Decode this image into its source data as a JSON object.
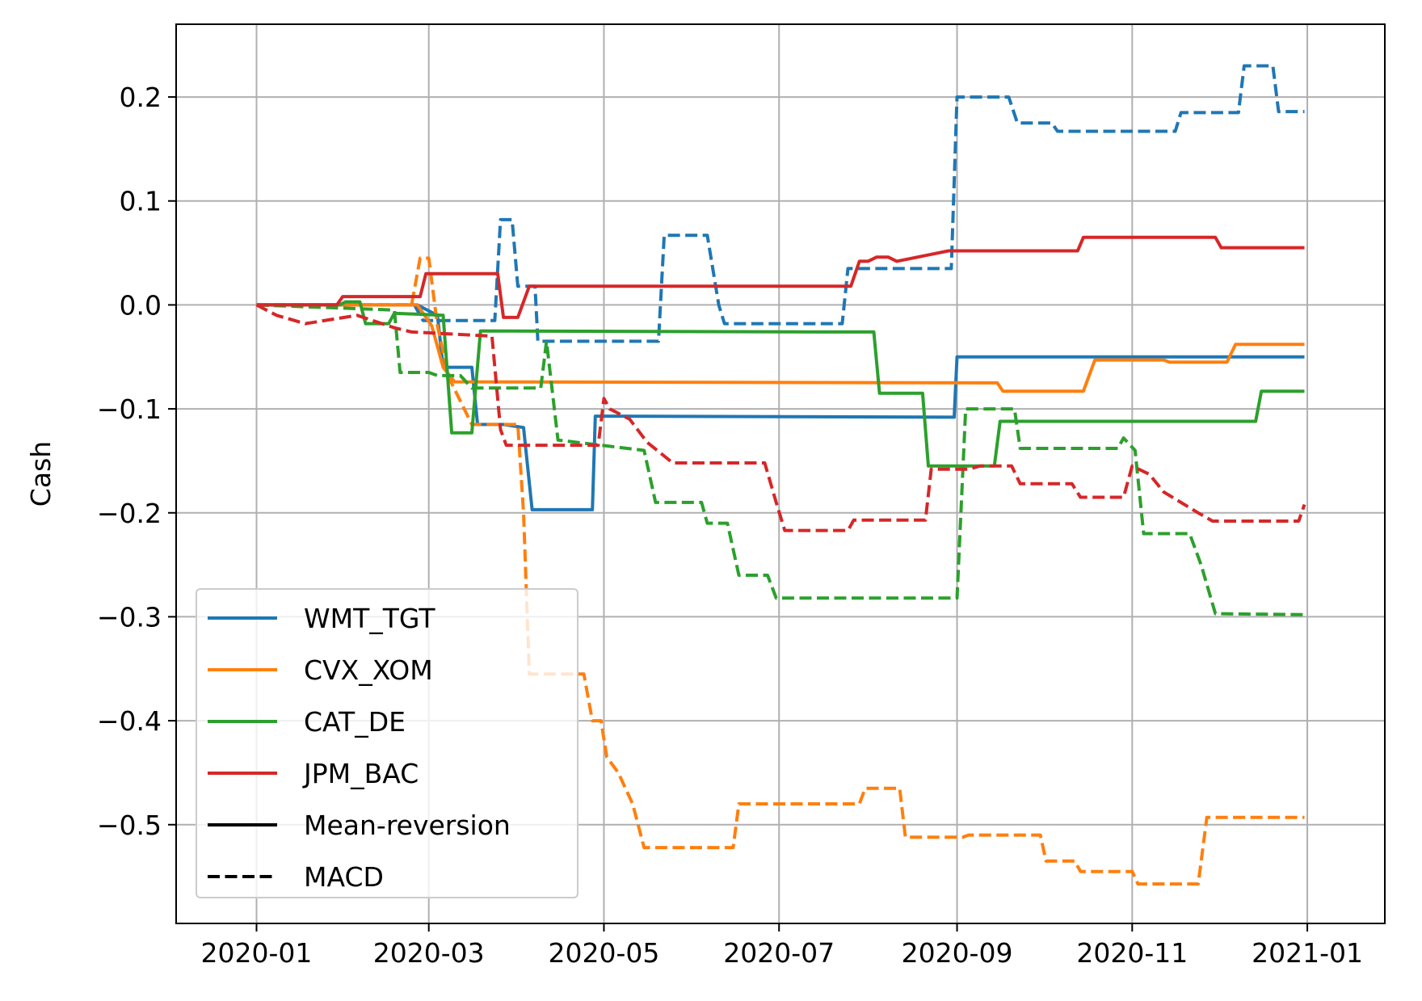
{
  "chart_data": {
    "type": "line",
    "title": "",
    "xlabel": "",
    "ylabel": "Cash",
    "x_ticks": [
      "2020-01",
      "2020-03",
      "2020-05",
      "2020-07",
      "2020-09",
      "2020-11",
      "2021-01"
    ],
    "y_ticks": [
      0.2,
      0.1,
      0.0,
      -0.1,
      -0.2,
      -0.3,
      -0.4,
      -0.5
    ],
    "y_tick_labels": [
      "0.2",
      "0.1",
      "0.0",
      "−0.1",
      "−0.2",
      "−0.3",
      "−0.4",
      "−0.5"
    ],
    "xlim": [
      "2019-12-04",
      "2021-01-28"
    ],
    "ylim": [
      -0.595,
      0.27
    ],
    "grid": true,
    "legend_position": "lower-left",
    "colors": {
      "WMT_TGT": "#1f77b4",
      "CVX_XOM": "#ff7f0e",
      "CAT_DE": "#2ca02c",
      "JPM_BAC": "#d62728",
      "style_key": "#000000"
    },
    "legend": [
      {
        "label": "WMT_TGT",
        "color": "#1f77b4",
        "style": "solid"
      },
      {
        "label": "CVX_XOM",
        "color": "#ff7f0e",
        "style": "solid"
      },
      {
        "label": "CAT_DE",
        "color": "#2ca02c",
        "style": "solid"
      },
      {
        "label": "JPM_BAC",
        "color": "#d62728",
        "style": "solid"
      },
      {
        "label": "Mean-reversion",
        "color": "#000000",
        "style": "solid"
      },
      {
        "label": "MACD",
        "color": "#000000",
        "style": "dashed"
      }
    ],
    "series": [
      {
        "name": "WMT_TGT",
        "strategy": "Mean-reversion",
        "color": "#1f77b4",
        "dashed": false,
        "points": [
          [
            "2020-01-01",
            0.0
          ],
          [
            "2020-02-26",
            0.0
          ],
          [
            "2020-03-04",
            -0.01
          ],
          [
            "2020-03-06",
            -0.06
          ],
          [
            "2020-03-16",
            -0.06
          ],
          [
            "2020-03-18",
            -0.115
          ],
          [
            "2020-03-27",
            -0.115
          ],
          [
            "2020-04-03",
            -0.118
          ],
          [
            "2020-04-06",
            -0.197
          ],
          [
            "2020-04-27",
            -0.197
          ],
          [
            "2020-04-28",
            -0.107
          ],
          [
            "2020-08-31",
            -0.108
          ],
          [
            "2020-09-01",
            -0.05
          ],
          [
            "2020-12-31",
            -0.05
          ]
        ]
      },
      {
        "name": "WMT_TGT",
        "strategy": "MACD",
        "color": "#1f77b4",
        "dashed": true,
        "points": [
          [
            "2020-01-01",
            0.0
          ],
          [
            "2020-02-25",
            0.0
          ],
          [
            "2020-02-28",
            -0.015
          ],
          [
            "2020-03-24",
            -0.015
          ],
          [
            "2020-03-26",
            0.082
          ],
          [
            "2020-03-30",
            0.082
          ],
          [
            "2020-04-01",
            0.018
          ],
          [
            "2020-04-07",
            0.018
          ],
          [
            "2020-04-08",
            -0.035
          ],
          [
            "2020-05-20",
            -0.035
          ],
          [
            "2020-05-22",
            0.067
          ],
          [
            "2020-06-06",
            0.067
          ],
          [
            "2020-06-10",
            0.0
          ],
          [
            "2020-06-12",
            -0.018
          ],
          [
            "2020-07-23",
            -0.018
          ],
          [
            "2020-07-25",
            0.035
          ],
          [
            "2020-08-30",
            0.035
          ],
          [
            "2020-09-01",
            0.2
          ],
          [
            "2020-09-19",
            0.2
          ],
          [
            "2020-09-22",
            0.175
          ],
          [
            "2020-10-04",
            0.175
          ],
          [
            "2020-10-06",
            0.167
          ],
          [
            "2020-11-16",
            0.167
          ],
          [
            "2020-11-18",
            0.185
          ],
          [
            "2020-12-08",
            0.185
          ],
          [
            "2020-12-10",
            0.23
          ],
          [
            "2020-12-20",
            0.23
          ],
          [
            "2020-12-22",
            0.186
          ],
          [
            "2020-12-31",
            0.186
          ]
        ]
      },
      {
        "name": "CVX_XOM",
        "strategy": "Mean-reversion",
        "color": "#ff7f0e",
        "dashed": false,
        "points": [
          [
            "2020-01-01",
            0.0
          ],
          [
            "2020-02-26",
            0.0
          ],
          [
            "2020-03-02",
            -0.02
          ],
          [
            "2020-03-06",
            -0.06
          ],
          [
            "2020-03-10",
            -0.074
          ],
          [
            "2020-09-15",
            -0.075
          ],
          [
            "2020-09-17",
            -0.083
          ],
          [
            "2020-10-15",
            -0.083
          ],
          [
            "2020-10-19",
            -0.053
          ],
          [
            "2020-11-12",
            -0.053
          ],
          [
            "2020-11-14",
            -0.055
          ],
          [
            "2020-12-04",
            -0.055
          ],
          [
            "2020-12-07",
            -0.038
          ],
          [
            "2020-12-31",
            -0.038
          ]
        ]
      },
      {
        "name": "CVX_XOM",
        "strategy": "MACD",
        "color": "#ff7f0e",
        "dashed": true,
        "points": [
          [
            "2020-01-01",
            0.0
          ],
          [
            "2020-02-24",
            0.0
          ],
          [
            "2020-02-27",
            0.045
          ],
          [
            "2020-03-01",
            0.045
          ],
          [
            "2020-03-04",
            -0.02
          ],
          [
            "2020-03-08",
            -0.07
          ],
          [
            "2020-03-16",
            -0.115
          ],
          [
            "2020-04-01",
            -0.115
          ],
          [
            "2020-04-03",
            -0.2
          ],
          [
            "2020-04-05",
            -0.355
          ],
          [
            "2020-04-24",
            -0.355
          ],
          [
            "2020-04-27",
            -0.4
          ],
          [
            "2020-04-30",
            -0.4
          ],
          [
            "2020-05-02",
            -0.435
          ],
          [
            "2020-05-06",
            -0.45
          ],
          [
            "2020-05-11",
            -0.48
          ],
          [
            "2020-05-15",
            -0.522
          ],
          [
            "2020-06-15",
            -0.522
          ],
          [
            "2020-06-17",
            -0.48
          ],
          [
            "2020-07-29",
            -0.48
          ],
          [
            "2020-07-31",
            -0.465
          ],
          [
            "2020-08-12",
            -0.465
          ],
          [
            "2020-08-14",
            -0.512
          ],
          [
            "2020-09-03",
            -0.512
          ],
          [
            "2020-09-05",
            -0.51
          ],
          [
            "2020-09-30",
            -0.51
          ],
          [
            "2020-10-02",
            -0.535
          ],
          [
            "2020-10-12",
            -0.535
          ],
          [
            "2020-10-14",
            -0.545
          ],
          [
            "2020-11-01",
            -0.545
          ],
          [
            "2020-11-03",
            -0.557
          ],
          [
            "2020-11-24",
            -0.557
          ],
          [
            "2020-11-27",
            -0.493
          ],
          [
            "2020-12-31",
            -0.493
          ]
        ]
      },
      {
        "name": "CAT_DE",
        "strategy": "Mean-reversion",
        "color": "#2ca02c",
        "dashed": false,
        "points": [
          [
            "2020-01-01",
            0.0
          ],
          [
            "2020-01-30",
            0.0
          ],
          [
            "2020-02-01",
            0.003
          ],
          [
            "2020-02-06",
            0.003
          ],
          [
            "2020-02-08",
            -0.018
          ],
          [
            "2020-02-16",
            -0.018
          ],
          [
            "2020-02-18",
            -0.008
          ],
          [
            "2020-03-06",
            -0.01
          ],
          [
            "2020-03-09",
            -0.123
          ],
          [
            "2020-03-16",
            -0.123
          ],
          [
            "2020-03-19",
            -0.025
          ],
          [
            "2020-07-24",
            -0.026
          ],
          [
            "2020-08-03",
            -0.026
          ],
          [
            "2020-08-05",
            -0.085
          ],
          [
            "2020-08-20",
            -0.085
          ],
          [
            "2020-08-22",
            -0.155
          ],
          [
            "2020-09-14",
            -0.155
          ],
          [
            "2020-09-16",
            -0.112
          ],
          [
            "2020-12-14",
            -0.112
          ],
          [
            "2020-12-16",
            -0.083
          ],
          [
            "2020-12-31",
            -0.083
          ]
        ]
      },
      {
        "name": "CAT_DE",
        "strategy": "MACD",
        "color": "#2ca02c",
        "dashed": true,
        "points": [
          [
            "2020-01-01",
            0.0
          ],
          [
            "2020-02-18",
            -0.005
          ],
          [
            "2020-02-20",
            -0.065
          ],
          [
            "2020-03-01",
            -0.065
          ],
          [
            "2020-03-04",
            -0.068
          ],
          [
            "2020-03-12",
            -0.068
          ],
          [
            "2020-03-16",
            -0.08
          ],
          [
            "2020-04-09",
            -0.08
          ],
          [
            "2020-04-11",
            -0.035
          ],
          [
            "2020-04-15",
            -0.13
          ],
          [
            "2020-05-15",
            -0.14
          ],
          [
            "2020-05-19",
            -0.19
          ],
          [
            "2020-06-04",
            -0.19
          ],
          [
            "2020-06-06",
            -0.21
          ],
          [
            "2020-06-13",
            -0.21
          ],
          [
            "2020-06-17",
            -0.26
          ],
          [
            "2020-06-27",
            -0.26
          ],
          [
            "2020-06-30",
            -0.282
          ],
          [
            "2020-09-01",
            -0.282
          ],
          [
            "2020-09-04",
            -0.1
          ],
          [
            "2020-09-21",
            -0.1
          ],
          [
            "2020-09-23",
            -0.138
          ],
          [
            "2020-10-27",
            -0.138
          ],
          [
            "2020-10-29",
            -0.128
          ],
          [
            "2020-11-02",
            -0.14
          ],
          [
            "2020-11-05",
            -0.22
          ],
          [
            "2020-11-21",
            -0.22
          ],
          [
            "2020-11-25",
            -0.25
          ],
          [
            "2020-11-30",
            -0.297
          ],
          [
            "2020-12-31",
            -0.298
          ]
        ]
      },
      {
        "name": "JPM_BAC",
        "strategy": "Mean-reversion",
        "color": "#d62728",
        "dashed": false,
        "points": [
          [
            "2020-01-01",
            0.0
          ],
          [
            "2020-01-29",
            0.0
          ],
          [
            "2020-01-31",
            0.008
          ],
          [
            "2020-02-27",
            0.008
          ],
          [
            "2020-02-29",
            0.03
          ],
          [
            "2020-03-25",
            0.03
          ],
          [
            "2020-03-27",
            -0.012
          ],
          [
            "2020-04-01",
            -0.012
          ],
          [
            "2020-04-05",
            0.018
          ],
          [
            "2020-07-26",
            0.018
          ],
          [
            "2020-07-29",
            0.042
          ],
          [
            "2020-08-01",
            0.042
          ],
          [
            "2020-08-04",
            0.046
          ],
          [
            "2020-08-08",
            0.046
          ],
          [
            "2020-08-11",
            0.042
          ],
          [
            "2020-08-29",
            0.052
          ],
          [
            "2020-10-13",
            0.052
          ],
          [
            "2020-10-15",
            0.065
          ],
          [
            "2020-11-30",
            0.065
          ],
          [
            "2020-12-02",
            0.055
          ],
          [
            "2020-12-31",
            0.055
          ]
        ]
      },
      {
        "name": "JPM_BAC",
        "strategy": "MACD",
        "color": "#d62728",
        "dashed": true,
        "points": [
          [
            "2020-01-01",
            0.0
          ],
          [
            "2020-01-08",
            -0.01
          ],
          [
            "2020-01-18",
            -0.018
          ],
          [
            "2020-02-05",
            -0.01
          ],
          [
            "2020-02-18",
            -0.022
          ],
          [
            "2020-02-24",
            -0.026
          ],
          [
            "2020-03-23",
            -0.03
          ],
          [
            "2020-03-26",
            -0.12
          ],
          [
            "2020-03-28",
            -0.135
          ],
          [
            "2020-04-29",
            -0.135
          ],
          [
            "2020-05-01",
            -0.09
          ],
          [
            "2020-05-03",
            -0.1
          ],
          [
            "2020-05-10",
            -0.11
          ],
          [
            "2020-05-16",
            -0.132
          ],
          [
            "2020-05-25",
            -0.152
          ],
          [
            "2020-06-26",
            -0.152
          ],
          [
            "2020-06-30",
            -0.19
          ],
          [
            "2020-07-03",
            -0.217
          ],
          [
            "2020-07-25",
            -0.217
          ],
          [
            "2020-07-27",
            -0.207
          ],
          [
            "2020-08-21",
            -0.207
          ],
          [
            "2020-08-23",
            -0.158
          ],
          [
            "2020-09-05",
            -0.158
          ],
          [
            "2020-09-09",
            -0.155
          ],
          [
            "2020-09-20",
            -0.155
          ],
          [
            "2020-09-23",
            -0.172
          ],
          [
            "2020-10-11",
            -0.172
          ],
          [
            "2020-10-14",
            -0.185
          ],
          [
            "2020-10-29",
            -0.185
          ],
          [
            "2020-11-01",
            -0.155
          ],
          [
            "2020-11-07",
            -0.163
          ],
          [
            "2020-11-12",
            -0.18
          ],
          [
            "2020-11-24",
            -0.2
          ],
          [
            "2020-11-29",
            -0.208
          ],
          [
            "2020-12-29",
            -0.208
          ],
          [
            "2020-12-31",
            -0.192
          ]
        ]
      }
    ]
  }
}
